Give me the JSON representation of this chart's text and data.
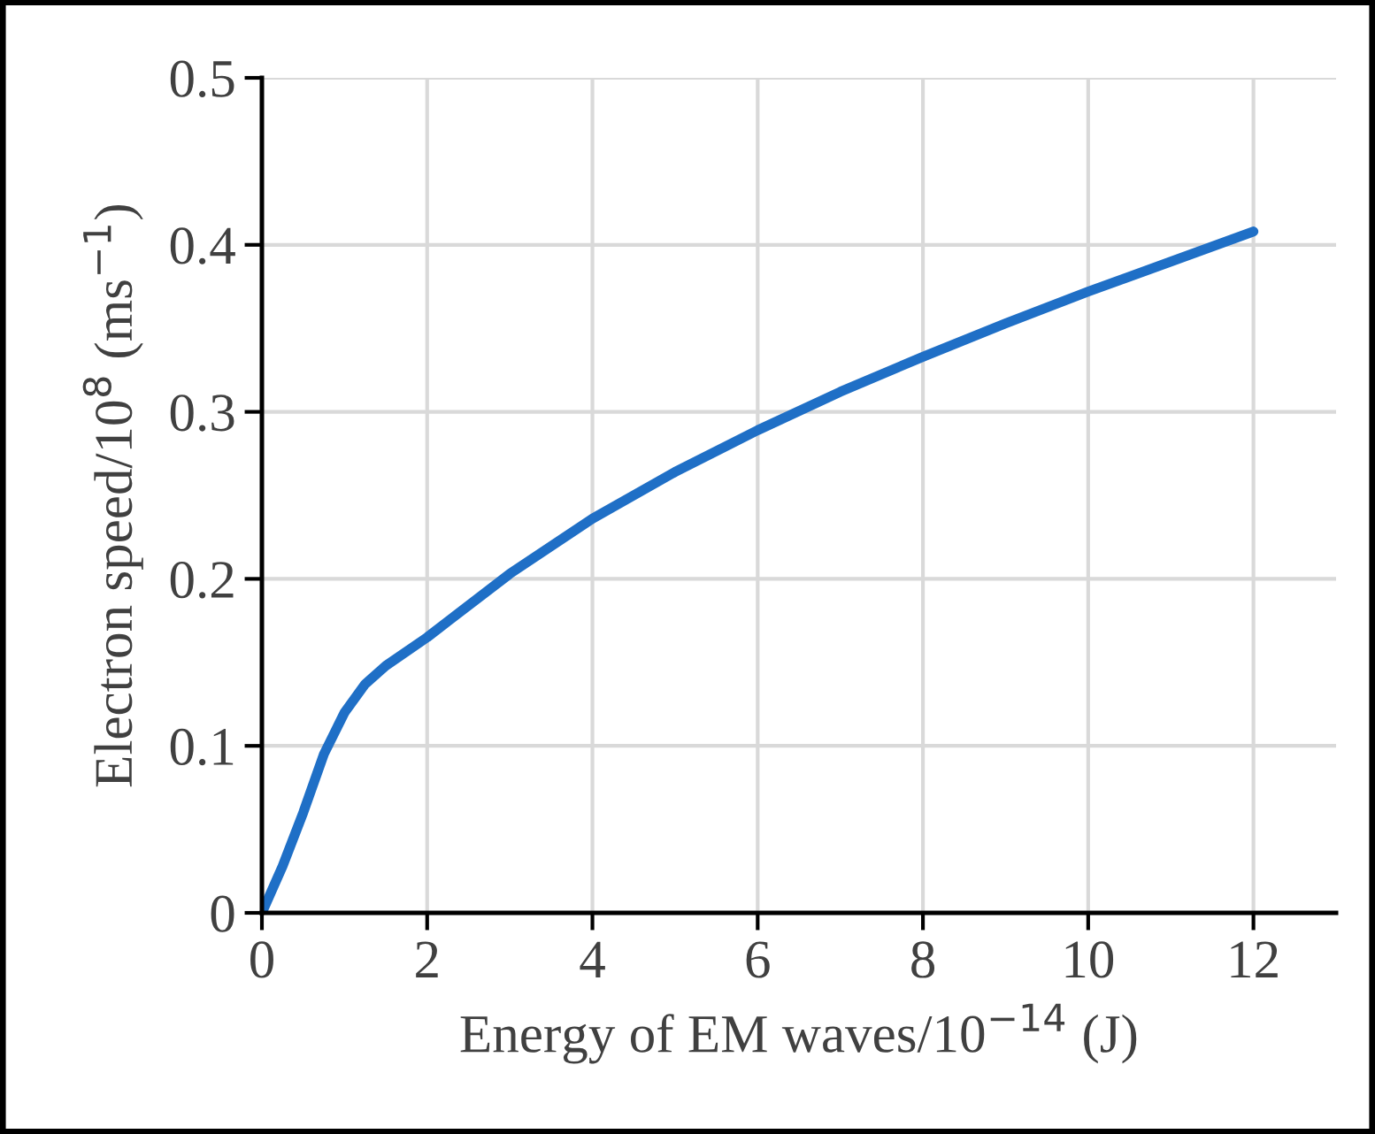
{
  "chart_data": {
    "type": "line",
    "xlabel": "Energy of EM waves/10$^{−14}$ (J)",
    "ylabel": "Electron speed/10$^{8}$ (ms$^{−1}$)",
    "series": [
      {
        "color": "#1f6fc6",
        "x": [
          0,
          0.25,
          0.5,
          0.75,
          1,
          1.25,
          1.5,
          2,
          3,
          4,
          5,
          6,
          7,
          8,
          9,
          10,
          11,
          12
        ],
        "values": [
          0,
          0.028,
          0.06,
          0.095,
          0.12,
          0.137,
          0.148,
          0.165,
          0.203,
          0.236,
          0.264,
          0.289,
          0.312,
          0.333,
          0.353,
          0.372,
          0.39,
          0.408
        ]
      }
    ],
    "xlim": [
      0,
      13
    ],
    "ylim": [
      0,
      0.5
    ],
    "xticks": [
      0,
      2,
      4,
      6,
      8,
      10,
      12
    ],
    "yticks": [
      {
        "value": 0,
        "label": "0"
      },
      0.1,
      0.2,
      0.3,
      0.4,
      0.5
    ],
    "grid": true,
    "legend": false,
    "marker": "none",
    "line_style": "solid"
  }
}
